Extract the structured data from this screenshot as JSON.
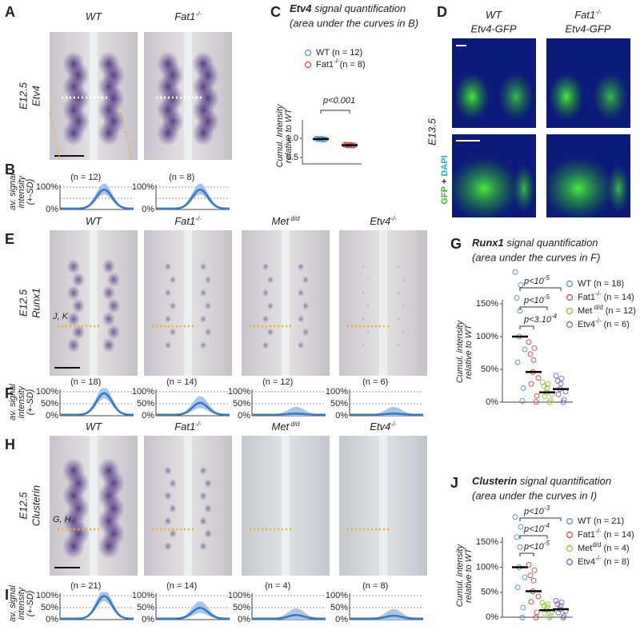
{
  "A": {
    "letter": "A",
    "cols": [
      {
        "g": "WT"
      },
      {
        "g": "Fat1",
        "s": "-/-"
      }
    ],
    "stage": "E12.5",
    "gene": "Etv4"
  },
  "B": {
    "letter": "B",
    "ylabel": [
      "av. signal",
      "intensity",
      "(+-SD)"
    ],
    "yticks": [
      "100%",
      "0%"
    ],
    "n": [
      "(n = 12)",
      "(n = 8)"
    ]
  },
  "C": {
    "letter": "C",
    "title": {
      "g": "Etv4",
      "t": " signal quantification"
    },
    "subtitle": "(area under the curves in B)",
    "legend": [
      {
        "g": "WT",
        "n": " (n = 12)",
        "color": "#4a8fd6"
      },
      {
        "g": "Fat1",
        "s": "-/-",
        "n": "(n = 8)",
        "color": "#d0443e"
      }
    ],
    "pvalues": [
      {
        "t": "p<0.001"
      }
    ],
    "ylabel": [
      "Cumul. Intensity",
      "relative to WT"
    ],
    "ylim": [
      0.33,
      1.48
    ],
    "yticks": [
      {
        "value": 0.5,
        "label": "0.5"
      },
      {
        "value": 1,
        "label": "1.0"
      }
    ],
    "means": [
      0.98,
      0.82
    ]
  },
  "D": {
    "letter": "D",
    "cols": [
      {
        "g": "WT",
        "r": "Etv4-GFP"
      },
      {
        "g": "Fat1",
        "s": "-/-",
        "r": "Etv4-GFP"
      }
    ],
    "stage": "E13.5",
    "stain": [
      "GFP",
      "+",
      "DAPI"
    ]
  },
  "E": {
    "letter": "E",
    "cols": [
      {
        "g": "WT"
      },
      {
        "g": "Fat1",
        "s": "-/-"
      },
      {
        "g": "Met",
        "s": " d/d"
      },
      {
        "g": "Etv4",
        "s": "-/-"
      }
    ],
    "stage": "E12.5",
    "gene": "Runx1",
    "ref": "J, K"
  },
  "F": {
    "letter": "F",
    "ylabel": [
      "av. signal",
      "intensity",
      "(+-SD)"
    ],
    "yticks": [
      "100%",
      "50%",
      "0%"
    ],
    "n": [
      "(n = 18)",
      "(n = 14)",
      "(n = 12)",
      "(n = 6)"
    ]
  },
  "G": {
    "letter": "G",
    "title": {
      "g": "Runx1",
      "t": " signal quantification"
    },
    "subtitle": "(area under the curves in F)",
    "legend": [
      {
        "g": "WT",
        "n": " (n = 18)",
        "color": "#4a8fd6"
      },
      {
        "g": "Fat1",
        "s": "-/-",
        "n": " (n = 14)",
        "color": "#d0443e"
      },
      {
        "g": "Met",
        "s": " d/d",
        "n": " (n = 12)",
        "color": "#8fbf3c"
      },
      {
        "g": "Etv4",
        "s": "-/-",
        "n": " (n = 6)",
        "color": "#7b5bb5"
      }
    ],
    "pvalues": [
      {
        "t": "p<10",
        "s": "-5"
      },
      {
        "t": "p<10",
        "s": "-5"
      },
      {
        "t": "p<3.10",
        "s": "-4"
      }
    ],
    "ylabel": [
      "Cumul. intensity",
      "relative to WT"
    ],
    "ylim": [
      0,
      156
    ],
    "yticks": [
      {
        "value": 0,
        "label": "0%"
      },
      {
        "value": 50,
        "label": "50%"
      },
      {
        "value": 100,
        "label": "100%"
      },
      {
        "value": 150,
        "label": "150%"
      }
    ],
    "means": [
      100,
      46,
      15,
      20
    ]
  },
  "H": {
    "letter": "H",
    "cols": [
      {
        "g": "WT"
      },
      {
        "g": "Fat1",
        "s": "-/-"
      },
      {
        "g": "Met",
        "s": " d/d"
      },
      {
        "g": "Etv4",
        "s": "-/-"
      }
    ],
    "stage": "E12.5",
    "gene": "Clusterin",
    "ref": "G, H"
  },
  "I": {
    "letter": "I",
    "ylabel": [
      "av. signal",
      "intensity",
      "(+-SD)"
    ],
    "yticks": [
      "100%",
      "50%",
      "0%"
    ],
    "n": [
      "(n = 21)",
      "(n = 14)",
      "(n = 4)",
      "(n = 8)"
    ]
  },
  "J": {
    "letter": "J",
    "title": {
      "g": "Clusterin",
      "t": " signal quantification"
    },
    "subtitle": "(area under the curves in I)",
    "legend": [
      {
        "g": "WT",
        "n": " (n = 21)",
        "color": "#4a8fd6"
      },
      {
        "g": "Fat1",
        "s": "-/-",
        "n": " (n = 14)",
        "color": "#d0443e"
      },
      {
        "g": "Met",
        "s": "d/d",
        "n": " (n = 4)",
        "color": "#8fbf3c"
      },
      {
        "g": "Etv4",
        "s": "-/-",
        "n": " (n = 8)",
        "color": "#7b5bb5"
      }
    ],
    "pvalues": [
      {
        "t": "p<10",
        "s": "-3"
      },
      {
        "t": "p<10",
        "s": "-4"
      },
      {
        "t": "p<10",
        "s": "-5"
      }
    ],
    "ylabel": [
      "Cumul. intensity",
      "relative to WT"
    ],
    "ylim": [
      0,
      160
    ],
    "yticks": [
      {
        "value": 0,
        "label": "0%"
      },
      {
        "value": 50,
        "label": "50%"
      },
      {
        "value": 100,
        "label": "100%"
      },
      {
        "value": 150,
        "label": "150%"
      }
    ],
    "means": [
      100,
      52,
      14,
      16
    ]
  }
}
